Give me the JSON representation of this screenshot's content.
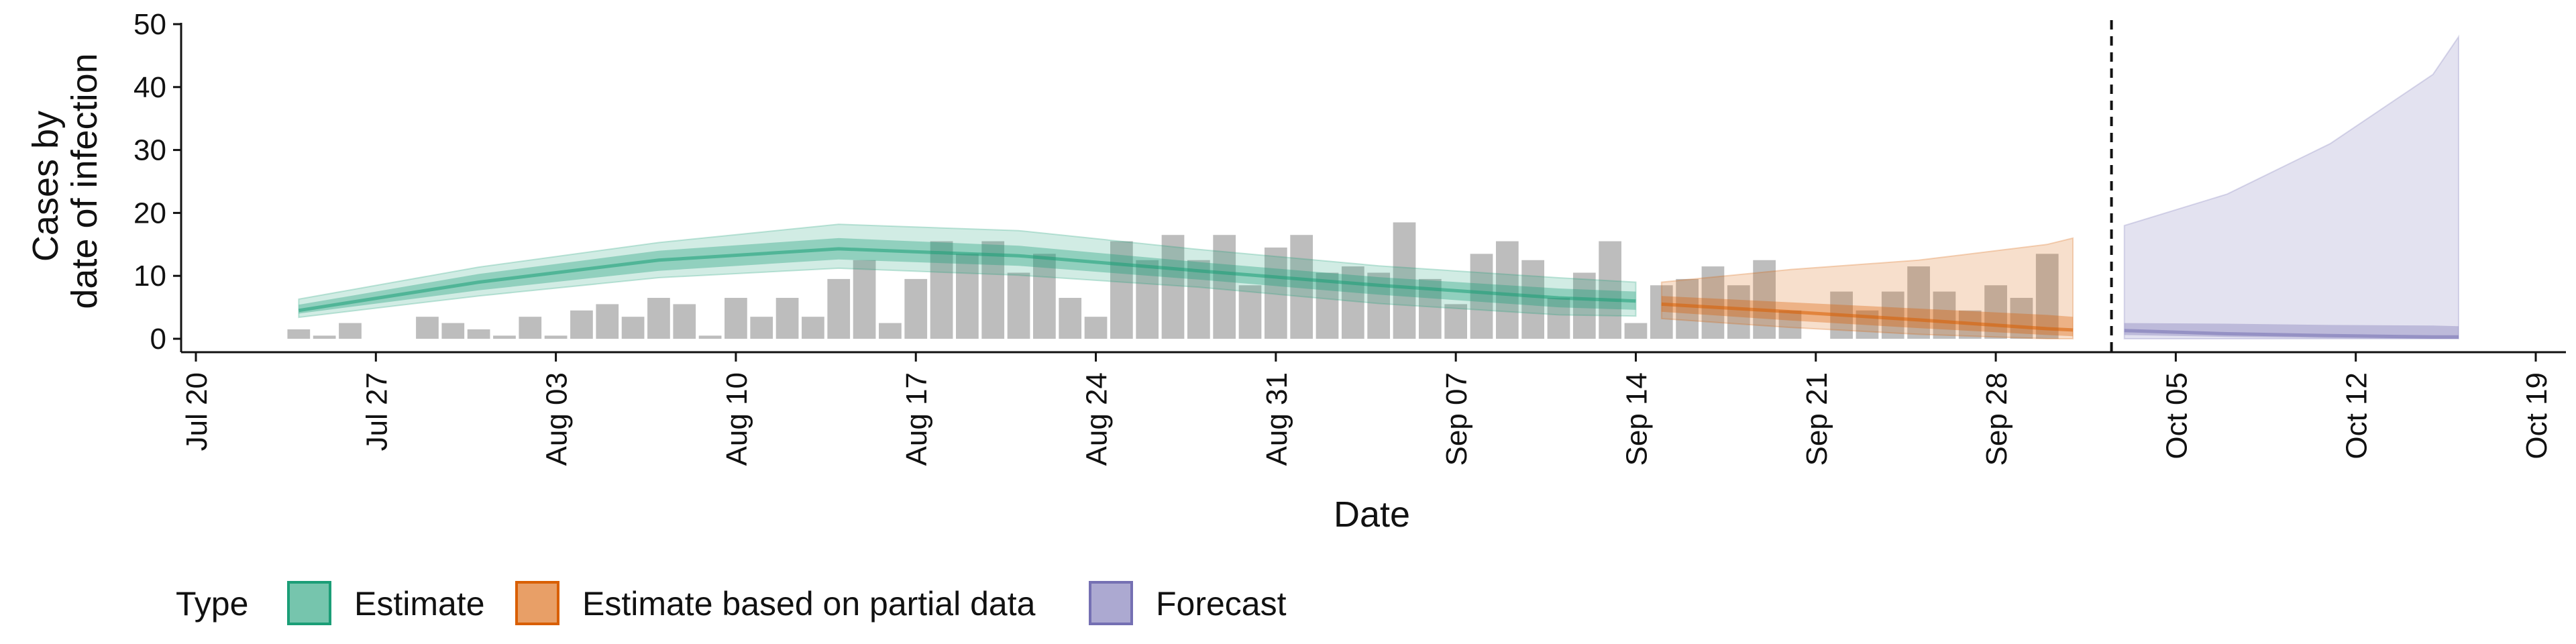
{
  "chart_data": {
    "type": "bar+area",
    "xlabel": "Date",
    "ylabel_lines": [
      "Cases by",
      "date of infection"
    ],
    "ylim": [
      0,
      50
    ],
    "yticks": [
      0,
      10,
      20,
      30,
      40,
      50
    ],
    "xlim": [
      "2020-07-20",
      "2020-10-19"
    ],
    "xticks": [
      {
        "date": "2020-07-20",
        "label": "Jul 20"
      },
      {
        "date": "2020-07-27",
        "label": "Jul 27"
      },
      {
        "date": "2020-08-03",
        "label": "Aug 03"
      },
      {
        "date": "2020-08-10",
        "label": "Aug 10"
      },
      {
        "date": "2020-08-17",
        "label": "Aug 17"
      },
      {
        "date": "2020-08-24",
        "label": "Aug 24"
      },
      {
        "date": "2020-08-31",
        "label": "Aug 31"
      },
      {
        "date": "2020-09-07",
        "label": "Sep 07"
      },
      {
        "date": "2020-09-14",
        "label": "Sep 14"
      },
      {
        "date": "2020-09-21",
        "label": "Sep 21"
      },
      {
        "date": "2020-09-28",
        "label": "Sep 28"
      },
      {
        "date": "2020-10-05",
        "label": "Oct 05"
      },
      {
        "date": "2020-10-12",
        "label": "Oct 12"
      },
      {
        "date": "2020-10-19",
        "label": "Oct 19"
      }
    ],
    "cutoff_date": "2020-10-02",
    "bars": {
      "start_date": "2020-07-24",
      "color": "#bdbdbd",
      "values": [
        1.5,
        0.5,
        2.5,
        0,
        0,
        3.5,
        2.5,
        1.5,
        0.5,
        3.5,
        0.5,
        4.5,
        5.5,
        3.5,
        6.5,
        5.5,
        0.5,
        6.5,
        3.5,
        6.5,
        3.5,
        9.5,
        12.5,
        2.5,
        9.5,
        15.5,
        13.5,
        15.5,
        10.5,
        13.5,
        6.5,
        3.5,
        15.5,
        12.5,
        16.5,
        12.5,
        16.5,
        8.5,
        14.5,
        16.5,
        10.5,
        11.5,
        10.5,
        18.5,
        9.5,
        5.5,
        13.5,
        15.5,
        12.5,
        6.5,
        10.5,
        15.5,
        2.5,
        8.5,
        9.5,
        11.5,
        8.5,
        12.5,
        4.5,
        0,
        7.5,
        4.5,
        7.5,
        11.5,
        7.5,
        4.5,
        8.5,
        6.5,
        13.5
      ]
    },
    "series": [
      {
        "name": "Estimate",
        "color": "#1b9e77",
        "x": [
          "2020-07-24",
          "2020-07-31",
          "2020-08-07",
          "2020-08-14",
          "2020-08-21",
          "2020-08-28",
          "2020-09-04",
          "2020-09-11",
          "2020-09-14"
        ],
        "median": [
          4.5,
          9,
          12.5,
          14.3,
          13.2,
          10.8,
          8.5,
          6.5,
          6
        ],
        "inner_low": [
          4,
          7.7,
          10.8,
          12.6,
          11.6,
          9.4,
          7,
          5,
          4.6
        ],
        "inner_high": [
          5.4,
          10.3,
          14,
          16,
          14.8,
          12.2,
          9.8,
          8,
          7.5
        ],
        "outer_low": [
          3.4,
          6.8,
          9.7,
          11.2,
          10.1,
          8.2,
          5.6,
          3.8,
          3.6
        ],
        "outer_high": [
          6.3,
          11.4,
          15.3,
          18.2,
          17.2,
          14.2,
          11.6,
          9.7,
          9
        ]
      },
      {
        "name": "Estimate based on partial data",
        "color": "#d95f02",
        "x": [
          "2020-09-15",
          "2020-09-20",
          "2020-09-25",
          "2020-09-30",
          "2020-10-01"
        ],
        "median": [
          5.5,
          4.3,
          3,
          1.6,
          1.4
        ],
        "inner_low": [
          4.3,
          2.9,
          1.7,
          0.6,
          0.4
        ],
        "inner_high": [
          6.8,
          5.8,
          4.8,
          3.8,
          3.5
        ],
        "outer_low": [
          3.2,
          1.8,
          0.7,
          0,
          0
        ],
        "outer_high": [
          9,
          11,
          12.5,
          15,
          16
        ]
      },
      {
        "name": "Forecast",
        "color": "#7570b3",
        "x": [
          "2020-10-03",
          "2020-10-07",
          "2020-10-11",
          "2020-10-15",
          "2020-10-16"
        ],
        "median": [
          1.3,
          0.8,
          0.5,
          0.3,
          0.3
        ],
        "inner_low": [
          0.6,
          0.3,
          0.1,
          0,
          0
        ],
        "inner_high": [
          2.5,
          2.4,
          2.2,
          2.1,
          2
        ],
        "outer_low": [
          0,
          0,
          0,
          0,
          0
        ],
        "outer_high": [
          18,
          23,
          31,
          42,
          48
        ]
      }
    ],
    "legend": {
      "position": "bottom",
      "title": "Type",
      "items": [
        {
          "label": "Estimate",
          "color": "#1b9e77"
        },
        {
          "label": "Estimate based on partial data",
          "color": "#d95f02"
        },
        {
          "label": "Forecast",
          "color": "#7570b3"
        }
      ]
    },
    "grid": false
  }
}
